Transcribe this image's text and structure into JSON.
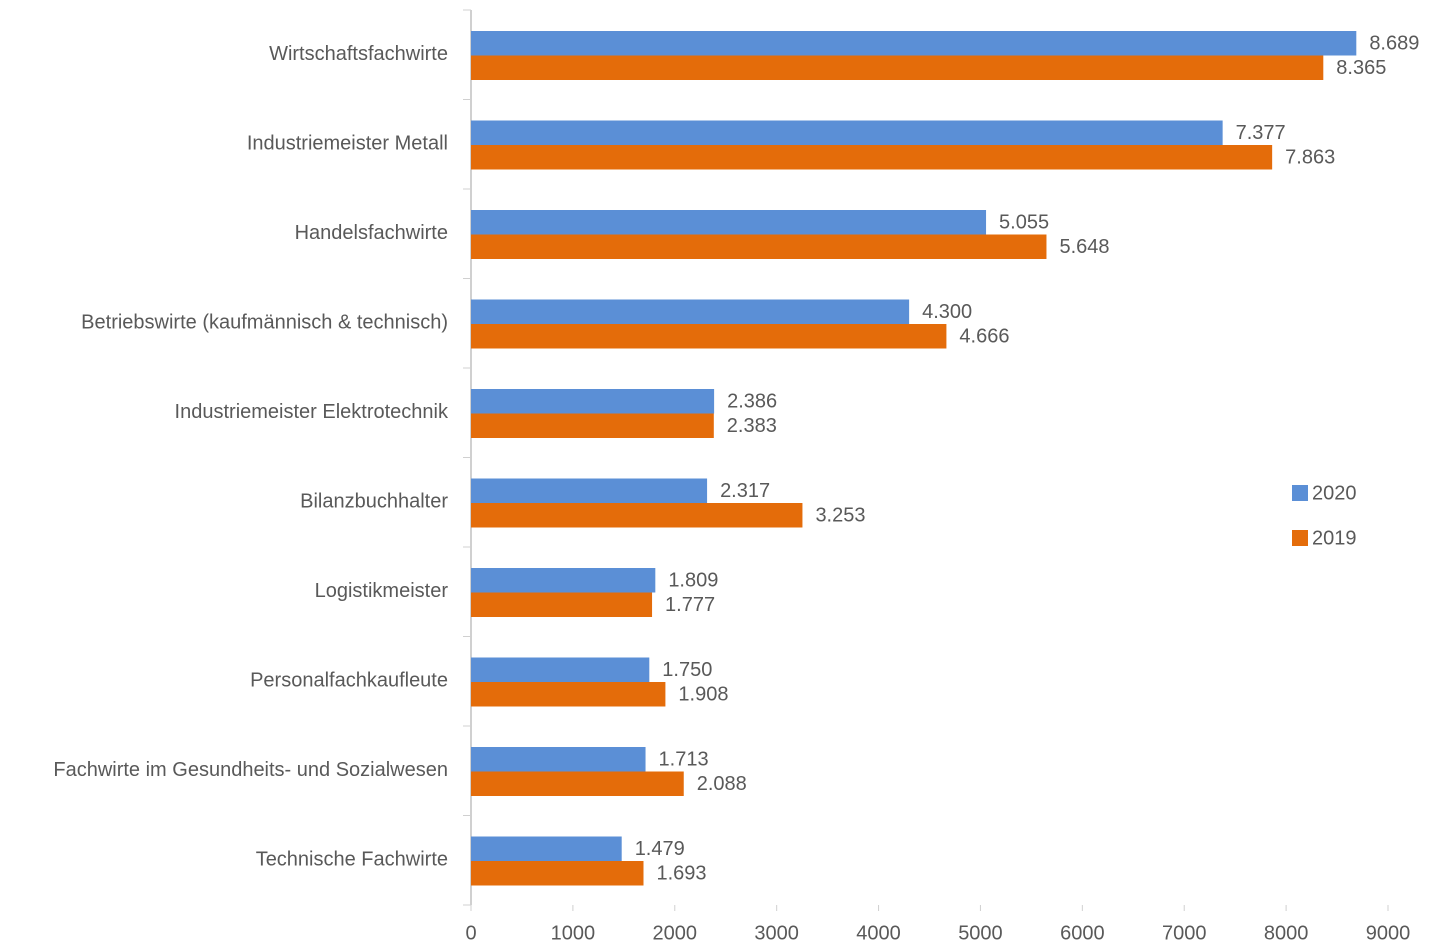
{
  "chart_data": {
    "type": "bar",
    "orientation": "horizontal",
    "categories": [
      "Wirtschaftsfachwirte",
      "Industriemeister Metall",
      "Handelsfachwirte",
      "Betriebswirte (kaufmännisch & technisch)",
      "Industriemeister Elektrotechnik",
      "Bilanzbuchhalter",
      "Logistikmeister",
      "Personalfachkaufleute",
      "Fachwirte im Gesundheits- und Sozialwesen",
      "Technische Fachwirte"
    ],
    "series": [
      {
        "name": "2020",
        "color": "#5b8fd6",
        "values": [
          8689,
          7377,
          5055,
          4300,
          2386,
          2317,
          1809,
          1750,
          1713,
          1479
        ],
        "value_labels": [
          "8.689",
          "7.377",
          "5.055",
          "4.300",
          "2.386",
          "2.317",
          "1.809",
          "1.750",
          "1.713",
          "1.479"
        ]
      },
      {
        "name": "2019",
        "color": "#e46c0a",
        "values": [
          8365,
          7863,
          5648,
          4666,
          2383,
          3253,
          1777,
          1908,
          2088,
          1693
        ],
        "value_labels": [
          "8.365",
          "7.863",
          "5.648",
          "4.666",
          "2.383",
          "3.253",
          "1.777",
          "1.908",
          "2.088",
          "1.693"
        ]
      }
    ],
    "xlim": [
      0,
      9000
    ],
    "xticks": [
      0,
      1000,
      2000,
      3000,
      4000,
      5000,
      6000,
      7000,
      8000,
      9000
    ],
    "grid": false,
    "legend": "right"
  }
}
